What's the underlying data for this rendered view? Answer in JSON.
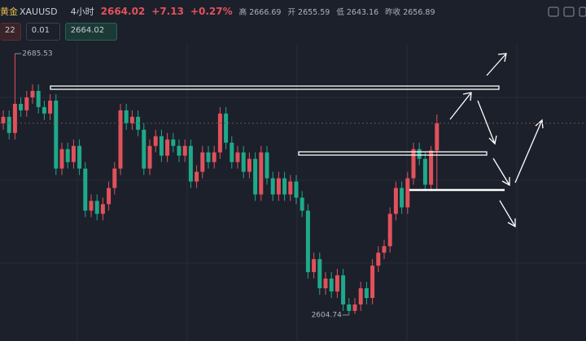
{
  "header": {
    "symbol": "黄金",
    "ticker": "XAUUSD",
    "interval": "4小时",
    "price": "2664.02",
    "change": "+7.13",
    "change_pct": "+0.27%",
    "high_label": "高",
    "high": "2666.69",
    "open_label": "开",
    "open": "2655.59",
    "low_label": "低",
    "low": "2643.16",
    "prev_label": "昨收",
    "prev_close": "2656.89"
  },
  "order_bar": {
    "left_value": "22",
    "lot": "0.01",
    "price": "2664.02"
  },
  "chart_data": {
    "type": "candlestick",
    "up_color": "#e0525b",
    "down_color": "#1fa98a",
    "ylim": [
      2596.7,
      2688.3
    ],
    "open": [
      2664,
      2666,
      2661,
      2670,
      2668,
      2672,
      2674,
      2669,
      2667,
      2671,
      2650,
      2656,
      2652,
      2657,
      2650,
      2637,
      2640,
      2636,
      2639,
      2644,
      2650,
      2668,
      2664,
      2666,
      2662,
      2650,
      2657,
      2660,
      2654,
      2659,
      2657,
      2654,
      2657,
      2646,
      2649,
      2655,
      2652,
      2655,
      2667,
      2658,
      2652,
      2655,
      2649,
      2653,
      2642,
      2655,
      2647,
      2642,
      2647,
      2642,
      2646,
      2641,
      2637,
      2618,
      2622,
      2613,
      2616,
      2612,
      2617,
      2608,
      2606,
      2608,
      2613,
      2610,
      2620,
      2624,
      2626,
      2636,
      2644,
      2638,
      2647,
      2656,
      2653,
      2645,
      2655.59
    ],
    "high": [
      2668,
      2668,
      2685.53,
      2672,
      2674,
      2676,
      2676,
      2671,
      2673,
      2673,
      2658,
      2658,
      2659,
      2659,
      2652,
      2642,
      2642,
      2641,
      2646,
      2652,
      2670,
      2670,
      2668,
      2668,
      2664,
      2659,
      2662,
      2662,
      2661,
      2661,
      2659,
      2659,
      2659,
      2651,
      2657,
      2657,
      2657,
      2669,
      2669,
      2660,
      2657,
      2657,
      2655,
      2655,
      2657,
      2657,
      2649,
      2649,
      2649,
      2648,
      2648,
      2643,
      2639,
      2624,
      2624,
      2618,
      2618,
      2619,
      2619,
      2610,
      2610,
      2615,
      2615,
      2622,
      2626,
      2628,
      2638,
      2646,
      2646,
      2649,
      2658,
      2658,
      2655,
      2657,
      2666.69
    ],
    "low": [
      2662,
      2659,
      2659,
      2666,
      2666,
      2670,
      2667,
      2665,
      2665,
      2648,
      2648,
      2650,
      2650,
      2648,
      2635,
      2635,
      2634,
      2634,
      2637,
      2642,
      2648,
      2662,
      2662,
      2660,
      2648,
      2648,
      2655,
      2652,
      2652,
      2655,
      2652,
      2652,
      2644,
      2644,
      2647,
      2650,
      2650,
      2653,
      2656,
      2650,
      2650,
      2647,
      2647,
      2640,
      2640,
      2645,
      2640,
      2640,
      2640,
      2640,
      2639,
      2635,
      2616,
      2616,
      2611,
      2611,
      2610,
      2610,
      2606,
      2604.74,
      2605,
      2606,
      2608,
      2608,
      2618,
      2622,
      2624,
      2634,
      2636,
      2636,
      2645,
      2651,
      2643,
      2643,
      2643.16
    ],
    "close": [
      2666,
      2661,
      2670,
      2668,
      2672,
      2674,
      2669,
      2667,
      2671,
      2650,
      2656,
      2652,
      2657,
      2650,
      2637,
      2640,
      2636,
      2639,
      2644,
      2650,
      2668,
      2664,
      2666,
      2662,
      2650,
      2657,
      2660,
      2654,
      2659,
      2657,
      2654,
      2657,
      2646,
      2649,
      2655,
      2652,
      2655,
      2667,
      2658,
      2652,
      2655,
      2649,
      2653,
      2642,
      2655,
      2647,
      2642,
      2647,
      2642,
      2646,
      2641,
      2637,
      2618,
      2622,
      2613,
      2616,
      2612,
      2617,
      2608,
      2606,
      2608,
      2613,
      2610,
      2620,
      2624,
      2626,
      2636,
      2644,
      2638,
      2647,
      2656,
      2653,
      2645,
      2655.59,
      2664.02
    ]
  }
}
